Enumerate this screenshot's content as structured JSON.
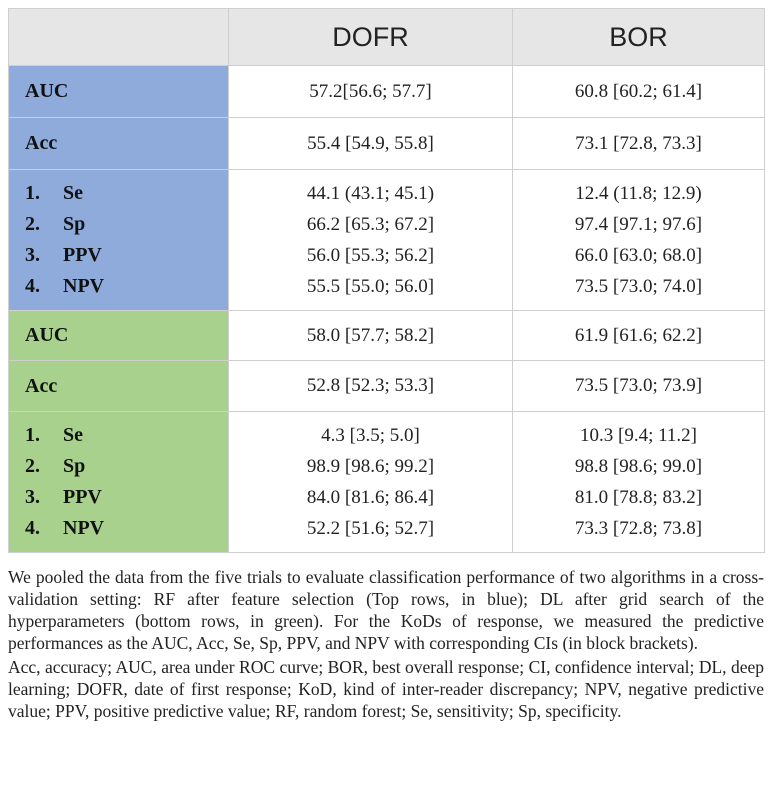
{
  "header": {
    "col1": "",
    "col2": "DOFR",
    "col3": "BOR"
  },
  "blue": {
    "auc": {
      "label": "AUC",
      "dofr": "57.2[56.6; 57.7]",
      "bor": "60.8 [60.2; 61.4]"
    },
    "acc": {
      "label": "Acc",
      "dofr": "55.4 [54.9, 55.8]",
      "bor": "73.1 [72.8, 73.3]"
    },
    "metrics": [
      {
        "num": "1.",
        "label": "Se",
        "dofr": "44.1 (43.1; 45.1)",
        "bor": "12.4 (11.8; 12.9)"
      },
      {
        "num": "2.",
        "label": "Sp",
        "dofr": "66.2 [65.3; 67.2]",
        "bor": "97.4 [97.1; 97.6]"
      },
      {
        "num": "3.",
        "label": "PPV",
        "dofr": "56.0 [55.3; 56.2]",
        "bor": "66.0 [63.0; 68.0]"
      },
      {
        "num": "4.",
        "label": "NPV",
        "dofr": "55.5 [55.0; 56.0]",
        "bor": "73.5 [73.0; 74.0]"
      }
    ]
  },
  "green": {
    "auc": {
      "label": "AUC",
      "dofr": "58.0 [57.7; 58.2]",
      "bor": "61.9 [61.6; 62.2]"
    },
    "acc": {
      "label": "Acc",
      "dofr": "52.8 [52.3; 53.3]",
      "bor": "73.5 [73.0; 73.9]"
    },
    "metrics": [
      {
        "num": "1.",
        "label": "Se",
        "dofr": "4.3 [3.5; 5.0]",
        "bor": "10.3 [9.4; 11.2]"
      },
      {
        "num": "2.",
        "label": "Sp",
        "dofr": "98.9 [98.6; 99.2]",
        "bor": "98.8 [98.6; 99.0]"
      },
      {
        "num": "3.",
        "label": "PPV",
        "dofr": "84.0 [81.6; 86.4]",
        "bor": "81.0 [78.8; 83.2]"
      },
      {
        "num": "4.",
        "label": "NPV",
        "dofr": "52.2 [51.6; 52.7]",
        "bor": "73.3 [72.8; 73.8]"
      }
    ]
  },
  "caption": {
    "p1": "We pooled the data from the five trials to evaluate classification performance of two algorithms in a cross-validation setting: RF after feature selection (Top rows, in blue); DL after grid search of the hyperparameters (bottom rows, in green). For the KoDs of response, we measured the predictive performances as the AUC, Acc, Se, Sp, PPV, and NPV with corresponding CIs (in block brackets).",
    "p2": "Acc, accuracy; AUC, area under ROC curve; BOR, best overall response; CI, confidence interval; DL, deep learning; DOFR, date of first response; KoD, kind of inter-reader discrepancy; NPV, negative predictive value; PPV, positive predictive value; RF, random forest; Se, sensitivity; Sp, specificity."
  },
  "colors": {
    "blue": "#8fabdc",
    "green": "#a9d18e",
    "header": "#e6e6e6"
  }
}
